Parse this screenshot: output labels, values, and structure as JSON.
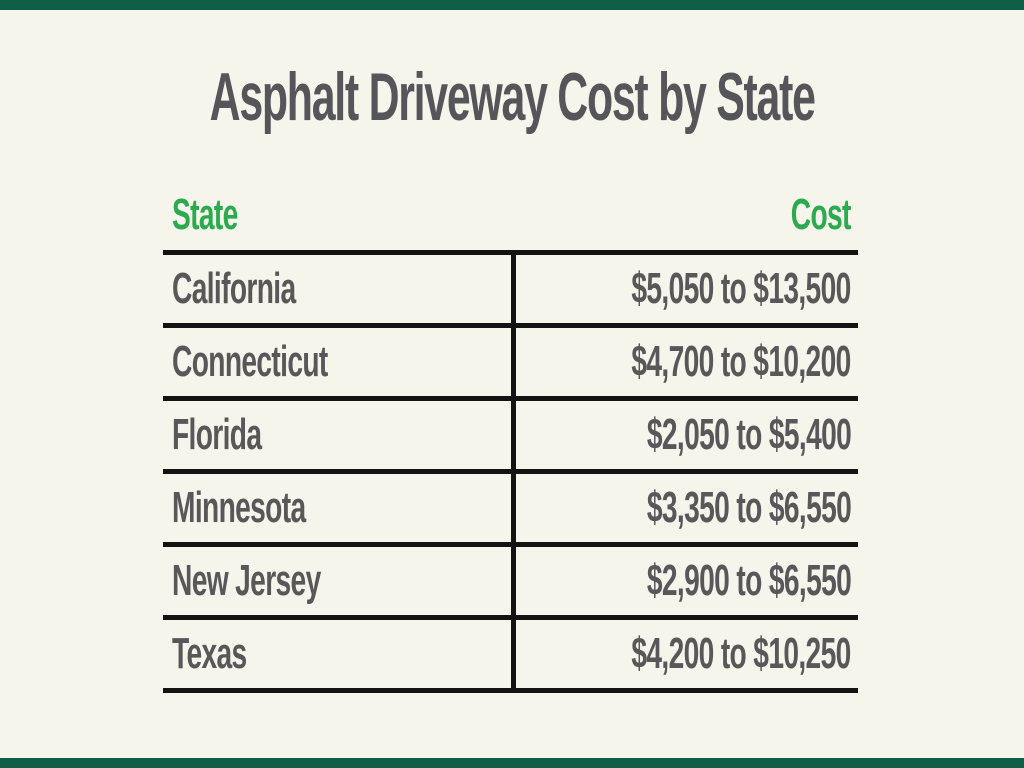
{
  "page": {
    "background_color": "#F6F5EB",
    "accent_bar_color": "#0F5F46",
    "line_color": "#131313"
  },
  "title": "Asphalt Driveway Cost by State",
  "title_color": "#56565A",
  "table": {
    "header_color": "#2BAA4F",
    "text_color": "#58585A",
    "headers": {
      "state": "State",
      "cost": "Cost"
    },
    "rows": [
      {
        "state": "California",
        "cost": "$5,050 to $13,500"
      },
      {
        "state": "Connecticut",
        "cost": "$4,700 to $10,200"
      },
      {
        "state": "Florida",
        "cost": "$2,050 to $5,400"
      },
      {
        "state": "Minnesota",
        "cost": "$3,350 to $6,550"
      },
      {
        "state": "New Jersey",
        "cost": "$2,900 to $6,550"
      },
      {
        "state": "Texas",
        "cost": "$4,200 to $10,250"
      }
    ]
  },
  "chart_data": {
    "type": "table",
    "title": "Asphalt Driveway Cost by State",
    "columns": [
      "State",
      "Cost"
    ],
    "rows": [
      [
        "California",
        "$5,050 to $13,500"
      ],
      [
        "Connecticut",
        "$4,700 to $10,200"
      ],
      [
        "Florida",
        "$2,050 to $5,400"
      ],
      [
        "Minnesota",
        "$3,350 to $6,550"
      ],
      [
        "New Jersey",
        "$2,900 to $6,550"
      ],
      [
        "Texas",
        "$4,200 to $10,250"
      ]
    ],
    "cost_min_usd": [
      5050,
      4700,
      2050,
      3350,
      2900,
      4200
    ],
    "cost_max_usd": [
      13500,
      10200,
      5400,
      6550,
      6550,
      10250
    ]
  }
}
